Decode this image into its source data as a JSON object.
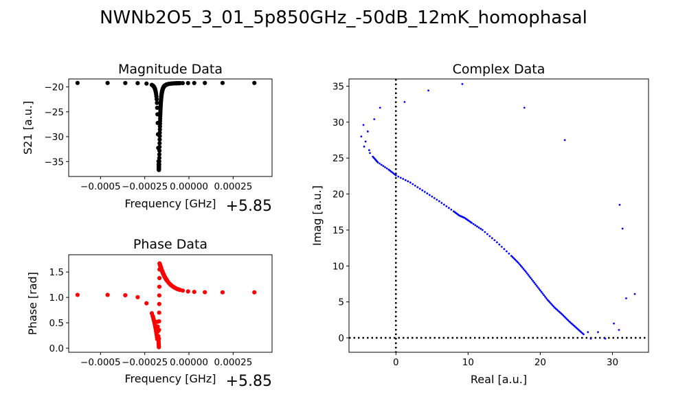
{
  "figure": {
    "suptitle": "NWNb2O5_3_01_5p850GHz_-50dB_12mK_homophasal"
  },
  "chart_data": [
    {
      "id": "magnitude",
      "type": "scatter",
      "title": "Magnitude Data",
      "xlabel": "Frequency [GHz]",
      "ylabel": "S21 [a.u.]",
      "x_offset_label": "+5.85",
      "xlim": [
        -0.00068,
        0.00047
      ],
      "ylim": [
        -38,
        -18.4
      ],
      "xticks": [
        -0.0005,
        -0.00025,
        0.0
      ],
      "xtick_labels": [
        "−0.0005",
        "−0.00025",
        "0.00000"
      ],
      "extra_xtick": 0.00025,
      "extra_xtick_label": "0.00025",
      "yticks": [
        -20,
        -25,
        -30,
        -35
      ],
      "ytick_labels": [
        "−20",
        "−25",
        "−30",
        "−35"
      ],
      "color": "#000000",
      "resonance": {
        "f0": -0.00017,
        "gamma": 6e-06,
        "baseline": -19.2,
        "depth": 17.5
      }
    },
    {
      "id": "phase",
      "type": "scatter",
      "title": "Phase Data",
      "xlabel": "Frequency [GHz]",
      "ylabel": "Phase [rad]",
      "x_offset_label": "+5.85",
      "xlim": [
        -0.00068,
        0.00047
      ],
      "ylim": [
        -0.08,
        1.84
      ],
      "xticks": [
        -0.0005,
        -0.00025,
        0.0
      ],
      "xtick_labels": [
        "−0.0005",
        "−0.00025",
        "0.00000"
      ],
      "extra_xtick": 0.00025,
      "extra_xtick_label": "0.00025",
      "yticks": [
        0.0,
        0.5,
        1.0,
        1.5
      ],
      "ytick_labels": [
        "0.0",
        "0.5",
        "1.0",
        "1.5"
      ],
      "color": "#ff0000"
    },
    {
      "id": "complex",
      "type": "scatter",
      "title": "Complex Data",
      "xlabel": "Real [a.u.]",
      "ylabel": "Imag [a.u.]",
      "xlim": [
        -6.5,
        35
      ],
      "ylim": [
        -2,
        36
      ],
      "xticks": [
        0,
        10,
        20,
        30
      ],
      "xtick_labels": [
        "0",
        "10",
        "20",
        "30"
      ],
      "yticks": [
        0,
        5,
        10,
        15,
        20,
        25,
        30,
        35
      ],
      "ytick_labels": [
        "0",
        "5",
        "10",
        "15",
        "20",
        "25",
        "30",
        "35"
      ],
      "color": "#0000ff",
      "reference_lines": {
        "x": 0,
        "y": 0,
        "style": "dotted"
      },
      "circle_points": [
        [
          -4.8,
          28.0
        ],
        [
          -4.5,
          29.6
        ],
        [
          -4.4,
          26.6
        ],
        [
          -4.2,
          27.3
        ],
        [
          -3.9,
          28.7
        ],
        [
          -3.7,
          26.1
        ],
        [
          -3.6,
          25.7
        ],
        [
          -3.0,
          30.4
        ],
        [
          -2.2,
          32.0
        ],
        [
          1.2,
          32.8
        ],
        [
          4.5,
          34.4
        ],
        [
          9.2,
          35.3
        ],
        [
          17.8,
          32.0
        ],
        [
          23.4,
          27.5
        ],
        [
          31.0,
          18.5
        ],
        [
          31.4,
          15.2
        ],
        [
          31.9,
          5.5
        ],
        [
          33.1,
          6.1
        ],
        [
          30.2,
          2.0
        ],
        [
          30.9,
          1.1
        ],
        [
          28.0,
          0.8
        ],
        [
          26.6,
          0.8
        ],
        [
          27.0,
          -0.1
        ],
        [
          29.0,
          -0.1
        ]
      ],
      "line_points": [
        [
          -3.2,
          25.2
        ],
        [
          -2.5,
          24.4
        ],
        [
          -1.0,
          23.4
        ],
        [
          0.0,
          22.6
        ],
        [
          2.0,
          21.6
        ],
        [
          4.0,
          20.3
        ],
        [
          6.0,
          19.0
        ],
        [
          8.0,
          17.6
        ],
        [
          8.8,
          17.0
        ],
        [
          9.5,
          16.7
        ],
        [
          10.5,
          16.0
        ],
        [
          12.0,
          15.0
        ],
        [
          14.0,
          13.3
        ],
        [
          16.0,
          11.4
        ],
        [
          17.0,
          10.4
        ],
        [
          18.0,
          9.2
        ],
        [
          19.0,
          7.9
        ],
        [
          20.0,
          6.6
        ],
        [
          21.0,
          5.3
        ],
        [
          22.0,
          4.2
        ],
        [
          23.0,
          3.3
        ],
        [
          24.0,
          2.3
        ],
        [
          25.0,
          1.4
        ],
        [
          26.0,
          0.5
        ]
      ]
    }
  ]
}
